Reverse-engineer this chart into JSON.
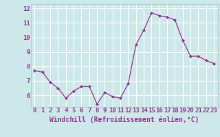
{
  "x": [
    0,
    1,
    2,
    3,
    4,
    5,
    6,
    7,
    8,
    9,
    10,
    11,
    12,
    13,
    14,
    15,
    16,
    17,
    18,
    19,
    20,
    21,
    22,
    23
  ],
  "y": [
    7.7,
    7.6,
    6.9,
    6.5,
    5.8,
    6.3,
    6.6,
    6.6,
    5.4,
    6.2,
    5.9,
    5.8,
    6.8,
    9.5,
    10.5,
    11.7,
    11.5,
    11.4,
    11.2,
    9.8,
    8.7,
    8.7,
    8.4,
    8.2
  ],
  "line_color": "#993399",
  "marker": "D",
  "marker_size": 2,
  "bg_color": "#cce8e8",
  "grid_color": "#b0d0d0",
  "xlabel": "Windchill (Refroidissement éolien,°C)",
  "xlabel_color": "#993399",
  "xlabel_fontsize": 7,
  "tick_color": "#993399",
  "tick_fontsize": 6.5,
  "ylim": [
    5.2,
    12.3
  ],
  "xlim": [
    -0.5,
    23.5
  ],
  "yticks": [
    6,
    7,
    8,
    9,
    10,
    11,
    12
  ],
  "xticks": [
    0,
    1,
    2,
    3,
    4,
    5,
    6,
    7,
    8,
    9,
    10,
    11,
    12,
    13,
    14,
    15,
    16,
    17,
    18,
    19,
    20,
    21,
    22,
    23
  ]
}
